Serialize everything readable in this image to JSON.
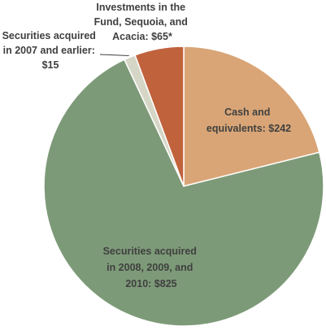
{
  "chart_data": {
    "type": "pie",
    "slices": [
      {
        "label_lines": [
          "Cash and",
          "equivalents: $242"
        ],
        "value": 242,
        "color": "#d9a576"
      },
      {
        "label_lines": [
          "Securities  acquired",
          "in 2008, 2009, and",
          "2010: $825"
        ],
        "value": 825,
        "color": "#7d9a78"
      },
      {
        "label_lines": [
          "Securities acquired",
          "in 2007 and earlier:",
          "$15"
        ],
        "value": 15,
        "color": "#d5d6c6"
      },
      {
        "label_lines": [
          "Investments in the",
          "Fund, Sequoia, and",
          "Acacia: $65*"
        ],
        "value": 65,
        "color": "#c0623c"
      }
    ],
    "start_angle_deg": 0,
    "direction": "clockwise"
  }
}
